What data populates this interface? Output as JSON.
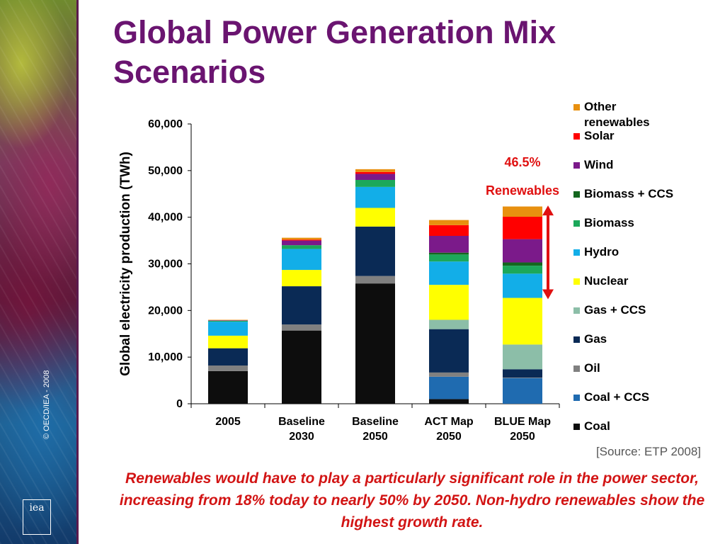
{
  "slide": {
    "title": "Global Power Generation Mix Scenarios",
    "source": "[Source: ETP 2008]",
    "caption": "Renewables would have to play a particularly significant role in the power sector, increasing from 18% today to nearly 50% by 2050. Non-hydro renewables show the highest growth rate.",
    "copyright": "© OECD/IEA - 2008",
    "logo_text": "iea"
  },
  "chart_data": {
    "type": "bar",
    "stacked": true,
    "title": "",
    "xlabel": "",
    "ylabel": "Global electricity production (TWh)",
    "ylim": [
      0,
      60000
    ],
    "yticks": [
      "0",
      "10,000",
      "20,000",
      "30,000",
      "40,000",
      "50,000",
      "60,000"
    ],
    "grid": false,
    "legend_position": "right",
    "categories": [
      [
        "2005"
      ],
      [
        "Baseline",
        "2030"
      ],
      [
        "Baseline",
        "2050"
      ],
      [
        "ACT Map",
        "2050"
      ],
      [
        "BLUE Map",
        "2050"
      ]
    ],
    "series": [
      {
        "name": "Coal",
        "color": "#0d0d0d",
        "values": [
          7000,
          15700,
          25800,
          1000,
          0
        ]
      },
      {
        "name": "Coal + CCS",
        "color": "#1f6bb0",
        "values": [
          0,
          0,
          0,
          4800,
          5500
        ]
      },
      {
        "name": "Oil",
        "color": "#808080",
        "values": [
          1200,
          1300,
          1600,
          900,
          100
        ]
      },
      {
        "name": "Gas",
        "color": "#0a2a55",
        "values": [
          3700,
          8200,
          10600,
          9300,
          1800
        ]
      },
      {
        "name": "Gas + CCS",
        "color": "#8cbea8",
        "values": [
          0,
          0,
          0,
          2000,
          5300
        ]
      },
      {
        "name": "Nuclear",
        "color": "#ffff00",
        "values": [
          2700,
          3500,
          4000,
          7500,
          10000
        ]
      },
      {
        "name": "Hydro",
        "color": "#12aee8",
        "values": [
          3000,
          4500,
          4500,
          5000,
          5200
        ]
      },
      {
        "name": "Biomass",
        "color": "#1ca85a",
        "values": [
          200,
          800,
          1500,
          1500,
          1700
        ]
      },
      {
        "name": "Biomass + CCS",
        "color": "#14661e",
        "values": [
          0,
          0,
          0,
          400,
          700
        ]
      },
      {
        "name": "Wind",
        "color": "#7b1a8a",
        "values": [
          100,
          1000,
          1300,
          3600,
          5000
        ]
      },
      {
        "name": "Solar",
        "color": "#ff0000",
        "values": [
          0,
          200,
          400,
          2300,
          4800
        ]
      },
      {
        "name": "Other renewables",
        "color": "#e8900f",
        "values": [
          100,
          400,
          600,
          1100,
          2200
        ]
      }
    ],
    "annotations": [
      {
        "text": "46.5%",
        "color": "#e01010"
      },
      {
        "text": "Renewables",
        "color": "#e01010"
      }
    ],
    "annotation_span": {
      "category_index": 4,
      "from": 22700,
      "to": 42200
    }
  }
}
